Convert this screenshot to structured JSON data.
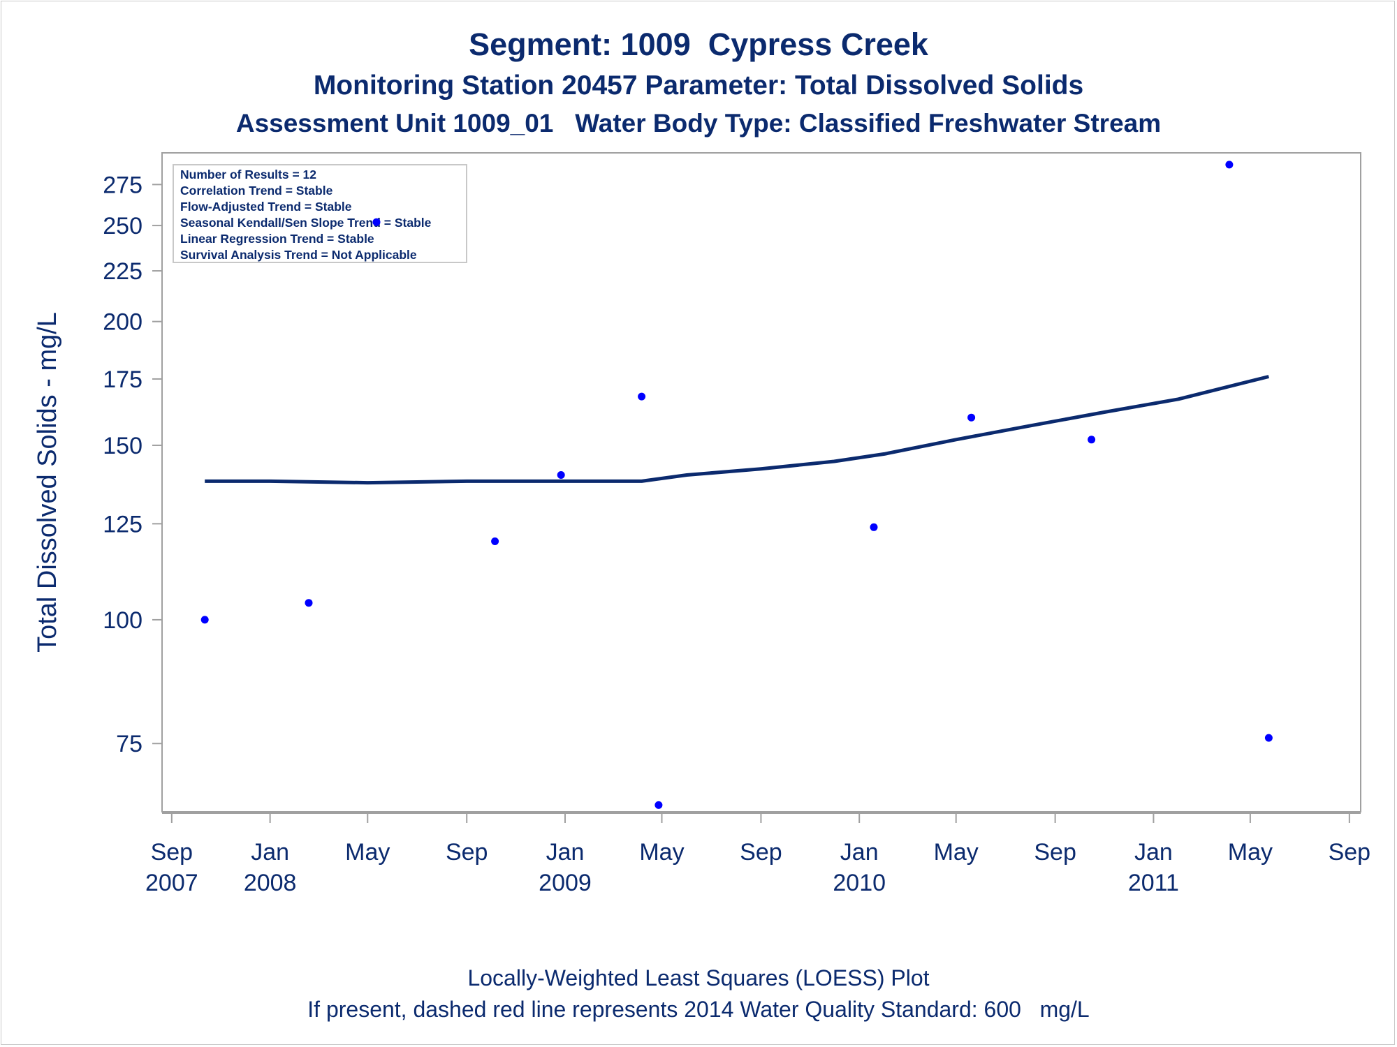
{
  "titles": {
    "line1": "Segment: 1009  Cypress Creek",
    "line2": "Monitoring Station 20457 Parameter: Total Dissolved Solids",
    "line3": "Assessment Unit 1009_01   Water Body Type: Classified Freshwater Stream"
  },
  "footnotes": {
    "line1": "Locally-Weighted Least Squares (LOESS) Plot",
    "line2": "If present, dashed red line represents 2014 Water Quality Standard: 600   mg/L"
  },
  "stats_box": [
    "Number of Results = 12",
    "Correlation Trend = Stable",
    "Flow-Adjusted Trend = Stable",
    "Seasonal Kendall/Sen Slope Trend = Stable",
    "Linear Regression Trend = Stable",
    "Survival Analysis Trend = Not Applicable"
  ],
  "colors": {
    "text": "#0b2a6e",
    "points": "#0000ff",
    "loess": "#0b2a6e",
    "frame": "#a0a0a0"
  },
  "chart_data": {
    "type": "scatter",
    "ylabel": "Total Dissolved Solids - mg/L",
    "y_scale": "log",
    "ylim": [
      64,
      296
    ],
    "y_ticks": [
      75,
      100,
      125,
      150,
      175,
      200,
      225,
      250,
      275
    ],
    "xlim": [
      "2007-08-20",
      "2011-09-15"
    ],
    "x_ticks": [
      {
        "date": "2007-09-01",
        "month": "Sep",
        "year": "2007"
      },
      {
        "date": "2008-01-01",
        "month": "Jan",
        "year": "2008"
      },
      {
        "date": "2008-05-01",
        "month": "May",
        "year": ""
      },
      {
        "date": "2008-09-01",
        "month": "Sep",
        "year": ""
      },
      {
        "date": "2009-01-01",
        "month": "Jan",
        "year": "2009"
      },
      {
        "date": "2009-05-01",
        "month": "May",
        "year": ""
      },
      {
        "date": "2009-09-01",
        "month": "Sep",
        "year": ""
      },
      {
        "date": "2010-01-01",
        "month": "Jan",
        "year": "2010"
      },
      {
        "date": "2010-05-01",
        "month": "May",
        "year": ""
      },
      {
        "date": "2010-09-01",
        "month": "Sep",
        "year": ""
      },
      {
        "date": "2011-01-01",
        "month": "Jan",
        "year": "2011"
      },
      {
        "date": "2011-05-01",
        "month": "May",
        "year": ""
      },
      {
        "date": "2011-09-01",
        "month": "Sep",
        "year": ""
      }
    ],
    "points": [
      {
        "date": "2007-10-12",
        "value": 100
      },
      {
        "date": "2008-02-18",
        "value": 104
      },
      {
        "date": "2008-05-12",
        "value": 252
      },
      {
        "date": "2008-10-06",
        "value": 120
      },
      {
        "date": "2008-12-27",
        "value": 140
      },
      {
        "date": "2009-04-06",
        "value": 168
      },
      {
        "date": "2009-04-27",
        "value": 65
      },
      {
        "date": "2010-01-19",
        "value": 124
      },
      {
        "date": "2010-05-20",
        "value": 160
      },
      {
        "date": "2010-10-16",
        "value": 152
      },
      {
        "date": "2011-04-05",
        "value": 288
      },
      {
        "date": "2011-05-24",
        "value": 76
      }
    ],
    "loess": [
      {
        "date": "2007-10-12",
        "value": 138
      },
      {
        "date": "2008-01-01",
        "value": 138
      },
      {
        "date": "2008-05-01",
        "value": 137.5
      },
      {
        "date": "2008-09-01",
        "value": 138
      },
      {
        "date": "2009-01-01",
        "value": 138
      },
      {
        "date": "2009-04-06",
        "value": 138
      },
      {
        "date": "2009-06-01",
        "value": 140
      },
      {
        "date": "2009-09-01",
        "value": 142
      },
      {
        "date": "2009-12-01",
        "value": 144.5
      },
      {
        "date": "2010-02-01",
        "value": 147
      },
      {
        "date": "2010-05-01",
        "value": 152
      },
      {
        "date": "2010-08-01",
        "value": 157
      },
      {
        "date": "2010-11-01",
        "value": 162
      },
      {
        "date": "2011-02-01",
        "value": 167
      },
      {
        "date": "2011-05-24",
        "value": 176
      }
    ]
  }
}
